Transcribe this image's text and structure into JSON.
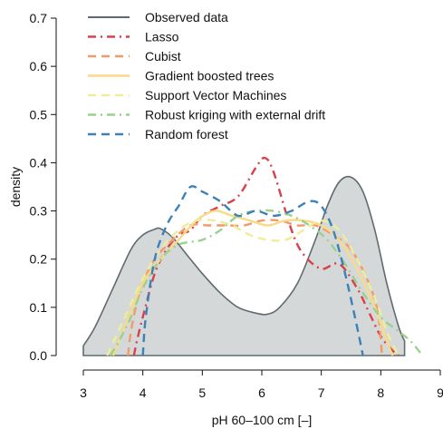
{
  "chart_data": {
    "type": "line",
    "xlabel": "pH 60–100 cm [–]",
    "ylabel": "density",
    "xlim": [
      3,
      9
    ],
    "ylim": [
      0,
      0.7
    ],
    "xticks": [
      "3",
      "4",
      "5",
      "6",
      "7",
      "8",
      "9"
    ],
    "yticks": [
      "0.0",
      "0.1",
      "0.2",
      "0.3",
      "0.4",
      "0.5",
      "0.6",
      "0.7"
    ],
    "grid": false,
    "legend_position": "top-left",
    "series": [
      {
        "name": "Observed data",
        "style": "solid-filled",
        "color": "#5f6b6f",
        "fill": "#d5d8d8",
        "x": [
          3.0,
          3.2,
          3.5,
          3.8,
          4.0,
          4.2,
          4.3,
          4.5,
          4.8,
          5.0,
          5.3,
          5.6,
          5.9,
          6.1,
          6.3,
          6.6,
          6.9,
          7.1,
          7.3,
          7.5,
          7.7,
          7.9,
          8.1,
          8.3,
          8.4
        ],
        "y": [
          0.02,
          0.06,
          0.14,
          0.22,
          0.25,
          0.262,
          0.263,
          0.245,
          0.2,
          0.17,
          0.13,
          0.1,
          0.088,
          0.086,
          0.1,
          0.15,
          0.24,
          0.31,
          0.36,
          0.37,
          0.34,
          0.26,
          0.15,
          0.06,
          0.03
        ]
      },
      {
        "name": "Lasso",
        "style": "dashdot",
        "color": "#d9404a",
        "x": [
          3.85,
          3.9,
          4.0,
          4.2,
          4.4,
          4.6,
          4.8,
          5.0,
          5.3,
          5.6,
          5.9,
          6.05,
          6.2,
          6.5,
          6.7,
          7.0,
          7.3,
          7.6,
          7.8,
          8.0,
          8.2,
          8.3
        ],
        "y": [
          0.0,
          0.03,
          0.08,
          0.17,
          0.22,
          0.25,
          0.26,
          0.29,
          0.31,
          0.33,
          0.39,
          0.41,
          0.38,
          0.26,
          0.21,
          0.18,
          0.19,
          0.14,
          0.09,
          0.04,
          0.01,
          0.0
        ]
      },
      {
        "name": "Cubist",
        "style": "dashed",
        "color": "#f4996a",
        "x": [
          3.75,
          3.8,
          3.9,
          4.0,
          4.2,
          4.5,
          4.8,
          5.1,
          5.4,
          5.7,
          6.0,
          6.3,
          6.6,
          6.9,
          7.2,
          7.5,
          7.8,
          7.95,
          8.0,
          8.02
        ],
        "y": [
          0.0,
          0.05,
          0.11,
          0.15,
          0.2,
          0.24,
          0.27,
          0.27,
          0.27,
          0.27,
          0.28,
          0.28,
          0.27,
          0.27,
          0.25,
          0.22,
          0.15,
          0.09,
          0.03,
          0.0
        ]
      },
      {
        "name": "Gradient boosted trees",
        "style": "solid",
        "color": "#f7db86",
        "x": [
          3.5,
          3.7,
          4.0,
          4.3,
          4.6,
          4.9,
          5.2,
          5.5,
          5.8,
          6.1,
          6.4,
          6.7,
          7.0,
          7.3,
          7.6,
          7.9,
          8.1,
          8.2
        ],
        "y": [
          0.0,
          0.06,
          0.15,
          0.2,
          0.24,
          0.28,
          0.3,
          0.29,
          0.28,
          0.27,
          0.28,
          0.28,
          0.27,
          0.24,
          0.18,
          0.1,
          0.03,
          0.0
        ]
      },
      {
        "name": "Support Vector Machines",
        "style": "dashed",
        "color": "#eded9b",
        "x": [
          3.4,
          3.7,
          4.0,
          4.3,
          4.6,
          4.9,
          5.2,
          5.5,
          5.8,
          6.1,
          6.4,
          6.7,
          7.0,
          7.3,
          7.6,
          7.9,
          8.1,
          8.3
        ],
        "y": [
          0.0,
          0.08,
          0.16,
          0.22,
          0.26,
          0.28,
          0.28,
          0.27,
          0.25,
          0.24,
          0.24,
          0.26,
          0.28,
          0.26,
          0.2,
          0.12,
          0.05,
          0.0
        ]
      },
      {
        "name": "Robust kriging with external drift",
        "style": "dashdot",
        "color": "#99d18e",
        "x": [
          3.45,
          3.6,
          3.8,
          4.0,
          4.3,
          4.6,
          5.0,
          5.3,
          5.6,
          5.9,
          6.2,
          6.5,
          6.8,
          7.1,
          7.4,
          7.7,
          8.0,
          8.3,
          8.5,
          8.7
        ],
        "y": [
          0.0,
          0.03,
          0.08,
          0.14,
          0.2,
          0.23,
          0.24,
          0.26,
          0.29,
          0.3,
          0.3,
          0.29,
          0.27,
          0.24,
          0.19,
          0.13,
          0.08,
          0.05,
          0.03,
          0.0
        ]
      },
      {
        "name": "Random forest",
        "style": "dashed",
        "color": "#3c82b8",
        "x": [
          4.0,
          4.05,
          4.2,
          4.4,
          4.6,
          4.8,
          5.0,
          5.3,
          5.6,
          5.9,
          6.2,
          6.5,
          6.8,
          7.0,
          7.2,
          7.4,
          7.6,
          7.7
        ],
        "y": [
          0.0,
          0.08,
          0.2,
          0.27,
          0.31,
          0.35,
          0.34,
          0.32,
          0.29,
          0.3,
          0.29,
          0.3,
          0.32,
          0.31,
          0.26,
          0.17,
          0.06,
          0.0
        ]
      }
    ]
  }
}
